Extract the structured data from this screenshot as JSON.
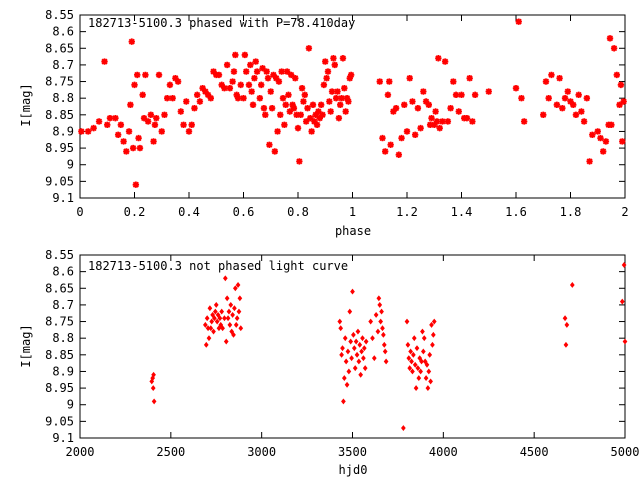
{
  "chart_data": [
    {
      "type": "scatter",
      "title": "182713-5100.3 phased with P=78.410day",
      "xlabel": "phase",
      "ylabel": "I[mag]",
      "xlim": [
        0,
        2
      ],
      "ylim": [
        9.1,
        8.55
      ],
      "y_inverted": true,
      "x_ticks": [
        "0",
        "0.2",
        "0.4",
        "0.6",
        "0.8",
        "1",
        "1.2",
        "1.4",
        "1.6",
        "1.8",
        "2"
      ],
      "y_ticks": [
        "8.55",
        "8.6",
        "8.65",
        "8.7",
        "8.75",
        "8.8",
        "8.85",
        "8.9",
        "8.95",
        "9",
        "9.05",
        "9.1"
      ],
      "color": "#ff0000",
      "marker": "star",
      "points": [
        [
          0.005,
          8.9
        ],
        [
          0.03,
          8.9
        ],
        [
          0.05,
          8.89
        ],
        [
          0.07,
          8.87
        ],
        [
          0.09,
          8.69
        ],
        [
          0.1,
          8.88
        ],
        [
          0.11,
          8.86
        ],
        [
          0.13,
          8.86
        ],
        [
          0.14,
          8.91
        ],
        [
          0.15,
          8.88
        ],
        [
          0.16,
          8.93
        ],
        [
          0.17,
          8.96
        ],
        [
          0.18,
          8.9
        ],
        [
          0.185,
          8.82
        ],
        [
          0.19,
          8.63
        ],
        [
          0.195,
          8.95
        ],
        [
          0.2,
          8.76
        ],
        [
          0.205,
          9.06
        ],
        [
          0.21,
          8.73
        ],
        [
          0.215,
          8.92
        ],
        [
          0.22,
          8.95
        ],
        [
          0.23,
          8.79
        ],
        [
          0.235,
          8.86
        ],
        [
          0.24,
          8.73
        ],
        [
          0.25,
          8.87
        ],
        [
          0.26,
          8.85
        ],
        [
          0.27,
          8.93
        ],
        [
          0.275,
          8.88
        ],
        [
          0.28,
          8.86
        ],
        [
          0.29,
          8.73
        ],
        [
          0.3,
          8.9
        ],
        [
          0.31,
          8.85
        ],
        [
          0.32,
          8.8
        ],
        [
          0.33,
          8.76
        ],
        [
          0.34,
          8.8
        ],
        [
          0.35,
          8.74
        ],
        [
          0.36,
          8.75
        ],
        [
          0.37,
          8.84
        ],
        [
          0.38,
          8.88
        ],
        [
          0.39,
          8.81
        ],
        [
          0.4,
          8.9
        ],
        [
          0.41,
          8.88
        ],
        [
          0.42,
          8.83
        ],
        [
          0.43,
          8.79
        ],
        [
          0.44,
          8.81
        ],
        [
          0.45,
          8.77
        ],
        [
          0.46,
          8.78
        ],
        [
          0.47,
          8.79
        ],
        [
          0.48,
          8.8
        ],
        [
          0.49,
          8.72
        ],
        [
          0.5,
          8.73
        ],
        [
          0.51,
          8.73
        ],
        [
          0.52,
          8.76
        ],
        [
          0.53,
          8.77
        ],
        [
          0.54,
          8.7
        ],
        [
          0.55,
          8.77
        ],
        [
          0.56,
          8.75
        ],
        [
          0.565,
          8.72
        ],
        [
          0.57,
          8.67
        ],
        [
          0.575,
          8.79
        ],
        [
          0.58,
          8.8
        ],
        [
          0.59,
          8.76
        ],
        [
          0.6,
          8.8
        ],
        [
          0.605,
          8.67
        ],
        [
          0.61,
          8.72
        ],
        [
          0.62,
          8.76
        ],
        [
          0.625,
          8.7
        ],
        [
          0.63,
          8.78
        ],
        [
          0.635,
          8.82
        ],
        [
          0.64,
          8.74
        ],
        [
          0.645,
          8.69
        ],
        [
          0.65,
          8.72
        ],
        [
          0.66,
          8.8
        ],
        [
          0.665,
          8.76
        ],
        [
          0.67,
          8.71
        ],
        [
          0.675,
          8.83
        ],
        [
          0.68,
          8.85
        ],
        [
          0.685,
          8.72
        ],
        [
          0.69,
          8.74
        ],
        [
          0.695,
          8.94
        ],
        [
          0.7,
          8.78
        ],
        [
          0.705,
          8.83
        ],
        [
          0.71,
          8.73
        ],
        [
          0.715,
          8.96
        ],
        [
          0.72,
          8.74
        ],
        [
          0.725,
          8.9
        ],
        [
          0.73,
          8.75
        ],
        [
          0.735,
          8.85
        ],
        [
          0.74,
          8.72
        ],
        [
          0.745,
          8.8
        ],
        [
          0.75,
          8.88
        ],
        [
          0.755,
          8.82
        ],
        [
          0.76,
          8.72
        ],
        [
          0.765,
          8.79
        ],
        [
          0.77,
          8.84
        ],
        [
          0.775,
          8.73
        ],
        [
          0.78,
          8.82
        ],
        [
          0.785,
          8.83
        ],
        [
          0.79,
          8.74
        ],
        [
          0.795,
          8.85
        ],
        [
          0.8,
          8.89
        ],
        [
          0.805,
          8.99
        ],
        [
          0.81,
          8.85
        ],
        [
          0.815,
          8.77
        ],
        [
          0.82,
          8.81
        ],
        [
          0.825,
          8.79
        ],
        [
          0.83,
          8.87
        ],
        [
          0.835,
          8.83
        ],
        [
          0.84,
          8.65
        ],
        [
          0.845,
          8.86
        ],
        [
          0.85,
          8.9
        ],
        [
          0.855,
          8.82
        ],
        [
          0.86,
          8.87
        ],
        [
          0.865,
          8.85
        ],
        [
          0.87,
          8.88
        ],
        [
          0.875,
          8.84
        ],
        [
          0.88,
          8.86
        ],
        [
          0.885,
          8.82
        ],
        [
          0.89,
          8.85
        ],
        [
          0.895,
          8.76
        ],
        [
          0.9,
          8.69
        ],
        [
          0.905,
          8.74
        ],
        [
          0.91,
          8.72
        ],
        [
          0.915,
          8.81
        ],
        [
          0.92,
          8.84
        ],
        [
          0.925,
          8.78
        ],
        [
          0.93,
          8.68
        ],
        [
          0.935,
          8.7
        ],
        [
          0.94,
          8.8
        ],
        [
          0.945,
          8.78
        ],
        [
          0.95,
          8.86
        ],
        [
          0.955,
          8.82
        ],
        [
          0.96,
          8.8
        ],
        [
          0.965,
          8.68
        ],
        [
          0.97,
          8.77
        ],
        [
          0.975,
          8.84
        ],
        [
          0.98,
          8.8
        ],
        [
          0.985,
          8.81
        ],
        [
          0.99,
          8.74
        ],
        [
          0.995,
          8.73
        ],
        [
          1.1,
          8.75
        ],
        [
          1.11,
          8.92
        ],
        [
          1.12,
          8.96
        ],
        [
          1.13,
          8.79
        ],
        [
          1.135,
          8.75
        ],
        [
          1.14,
          8.94
        ],
        [
          1.15,
          8.84
        ],
        [
          1.16,
          8.83
        ],
        [
          1.17,
          8.97
        ],
        [
          1.18,
          8.92
        ],
        [
          1.19,
          8.82
        ],
        [
          1.2,
          8.9
        ],
        [
          1.21,
          8.74
        ],
        [
          1.22,
          8.81
        ],
        [
          1.23,
          8.91
        ],
        [
          1.24,
          8.83
        ],
        [
          1.25,
          8.89
        ],
        [
          1.26,
          8.78
        ],
        [
          1.27,
          8.81
        ],
        [
          1.28,
          8.82
        ],
        [
          1.285,
          8.88
        ],
        [
          1.29,
          8.86
        ],
        [
          1.3,
          8.88
        ],
        [
          1.305,
          8.84
        ],
        [
          1.31,
          8.87
        ],
        [
          1.315,
          8.68
        ],
        [
          1.32,
          8.89
        ],
        [
          1.33,
          8.87
        ],
        [
          1.34,
          8.69
        ],
        [
          1.35,
          8.87
        ],
        [
          1.36,
          8.83
        ],
        [
          1.37,
          8.75
        ],
        [
          1.38,
          8.79
        ],
        [
          1.39,
          8.84
        ],
        [
          1.4,
          8.79
        ],
        [
          1.41,
          8.86
        ],
        [
          1.42,
          8.86
        ],
        [
          1.43,
          8.74
        ],
        [
          1.44,
          8.87
        ],
        [
          1.45,
          8.79
        ],
        [
          1.5,
          8.78
        ],
        [
          1.6,
          8.77
        ],
        [
          1.61,
          8.57
        ],
        [
          1.62,
          8.8
        ],
        [
          1.63,
          8.87
        ],
        [
          1.7,
          8.85
        ],
        [
          1.71,
          8.75
        ],
        [
          1.72,
          8.8
        ],
        [
          1.73,
          8.73
        ],
        [
          1.75,
          8.82
        ],
        [
          1.76,
          8.74
        ],
        [
          1.77,
          8.83
        ],
        [
          1.78,
          8.8
        ],
        [
          1.79,
          8.78
        ],
        [
          1.8,
          8.81
        ],
        [
          1.81,
          8.82
        ],
        [
          1.82,
          8.85
        ],
        [
          1.83,
          8.79
        ],
        [
          1.84,
          8.84
        ],
        [
          1.85,
          8.87
        ],
        [
          1.86,
          8.8
        ],
        [
          1.87,
          8.99
        ],
        [
          1.88,
          8.91
        ],
        [
          1.9,
          8.9
        ],
        [
          1.91,
          8.92
        ],
        [
          1.92,
          8.96
        ],
        [
          1.93,
          8.93
        ],
        [
          1.94,
          8.88
        ],
        [
          1.945,
          8.62
        ],
        [
          1.95,
          8.88
        ],
        [
          1.96,
          8.65
        ],
        [
          1.97,
          8.73
        ],
        [
          1.98,
          8.82
        ],
        [
          1.985,
          8.76
        ],
        [
          1.99,
          8.93
        ],
        [
          1.995,
          8.81
        ]
      ]
    },
    {
      "type": "scatter",
      "title": "182713-5100.3 not phased light curve",
      "xlabel": "hjd0",
      "ylabel": "I[mag]",
      "xlim": [
        2000,
        5000
      ],
      "ylim": [
        9.1,
        8.55
      ],
      "y_inverted": true,
      "x_ticks": [
        "2000",
        "2500",
        "3000",
        "3500",
        "4000",
        "4500",
        "5000"
      ],
      "y_ticks": [
        "8.55",
        "8.6",
        "8.65",
        "8.7",
        "8.75",
        "8.8",
        "8.85",
        "8.9",
        "8.95",
        "9",
        "9.05",
        "9.1"
      ],
      "color": "#ff0000",
      "marker": "diamond",
      "points": [
        [
          2395,
          8.93
        ],
        [
          2400,
          8.92
        ],
        [
          2403,
          8.95
        ],
        [
          2405,
          8.91
        ],
        [
          2408,
          8.99
        ],
        [
          2690,
          8.76
        ],
        [
          2695,
          8.82
        ],
        [
          2700,
          8.74
        ],
        [
          2705,
          8.77
        ],
        [
          2710,
          8.8
        ],
        [
          2715,
          8.71
        ],
        [
          2720,
          8.77
        ],
        [
          2725,
          8.75
        ],
        [
          2730,
          8.73
        ],
        [
          2735,
          8.78
        ],
        [
          2740,
          8.74
        ],
        [
          2745,
          8.72
        ],
        [
          2750,
          8.7
        ],
        [
          2755,
          8.75
        ],
        [
          2760,
          8.73
        ],
        [
          2765,
          8.77
        ],
        [
          2770,
          8.74
        ],
        [
          2775,
          8.76
        ],
        [
          2780,
          8.72
        ],
        [
          2785,
          8.77
        ],
        [
          2795,
          8.74
        ],
        [
          2800,
          8.62
        ],
        [
          2805,
          8.81
        ],
        [
          2810,
          8.68
        ],
        [
          2815,
          8.74
        ],
        [
          2820,
          8.72
        ],
        [
          2825,
          8.76
        ],
        [
          2830,
          8.7
        ],
        [
          2835,
          8.78
        ],
        [
          2840,
          8.73
        ],
        [
          2845,
          8.79
        ],
        [
          2850,
          8.71
        ],
        [
          2855,
          8.65
        ],
        [
          2860,
          8.76
        ],
        [
          2865,
          8.74
        ],
        [
          2870,
          8.64
        ],
        [
          2875,
          8.72
        ],
        [
          2880,
          8.68
        ],
        [
          2885,
          8.77
        ],
        [
          3430,
          8.75
        ],
        [
          3435,
          8.77
        ],
        [
          3440,
          8.85
        ],
        [
          3445,
          8.83
        ],
        [
          3450,
          8.99
        ],
        [
          3455,
          8.92
        ],
        [
          3460,
          8.8
        ],
        [
          3465,
          8.87
        ],
        [
          3470,
          8.94
        ],
        [
          3475,
          8.84
        ],
        [
          3480,
          8.9
        ],
        [
          3485,
          8.72
        ],
        [
          3490,
          8.81
        ],
        [
          3495,
          8.86
        ],
        [
          3500,
          8.66
        ],
        [
          3505,
          8.79
        ],
        [
          3510,
          8.83
        ],
        [
          3515,
          8.89
        ],
        [
          3520,
          8.81
        ],
        [
          3525,
          8.85
        ],
        [
          3530,
          8.78
        ],
        [
          3535,
          8.87
        ],
        [
          3540,
          8.82
        ],
        [
          3545,
          8.91
        ],
        [
          3550,
          8.84
        ],
        [
          3555,
          8.8
        ],
        [
          3560,
          8.86
        ],
        [
          3565,
          8.83
        ],
        [
          3570,
          8.89
        ],
        [
          3575,
          8.81
        ],
        [
          3600,
          8.75
        ],
        [
          3610,
          8.8
        ],
        [
          3620,
          8.86
        ],
        [
          3630,
          8.73
        ],
        [
          3640,
          8.78
        ],
        [
          3645,
          8.68
        ],
        [
          3650,
          8.7
        ],
        [
          3655,
          8.75
        ],
        [
          3660,
          8.72
        ],
        [
          3665,
          8.77
        ],
        [
          3670,
          8.79
        ],
        [
          3675,
          8.82
        ],
        [
          3680,
          8.84
        ],
        [
          3685,
          8.87
        ],
        [
          3780,
          9.07
        ],
        [
          3800,
          8.75
        ],
        [
          3805,
          8.82
        ],
        [
          3810,
          8.86
        ],
        [
          3815,
          8.89
        ],
        [
          3820,
          8.84
        ],
        [
          3825,
          8.87
        ],
        [
          3830,
          8.9
        ],
        [
          3835,
          8.85
        ],
        [
          3840,
          8.8
        ],
        [
          3845,
          8.88
        ],
        [
          3850,
          8.95
        ],
        [
          3855,
          8.83
        ],
        [
          3860,
          8.89
        ],
        [
          3865,
          8.92
        ],
        [
          3870,
          8.86
        ],
        [
          3875,
          8.9
        ],
        [
          3880,
          8.87
        ],
        [
          3885,
          8.78
        ],
        [
          3890,
          8.84
        ],
        [
          3895,
          8.8
        ],
        [
          3900,
          8.87
        ],
        [
          3905,
          8.92
        ],
        [
          3910,
          8.88
        ],
        [
          3915,
          8.95
        ],
        [
          3920,
          8.9
        ],
        [
          3925,
          8.85
        ],
        [
          3930,
          8.93
        ],
        [
          3935,
          8.76
        ],
        [
          3940,
          8.82
        ],
        [
          3945,
          8.79
        ],
        [
          3950,
          8.75
        ],
        [
          4670,
          8.74
        ],
        [
          4675,
          8.82
        ],
        [
          4680,
          8.76
        ],
        [
          4710,
          8.64
        ],
        [
          4985,
          8.69
        ],
        [
          4995,
          8.58
        ],
        [
          5000,
          8.81
        ]
      ]
    }
  ]
}
